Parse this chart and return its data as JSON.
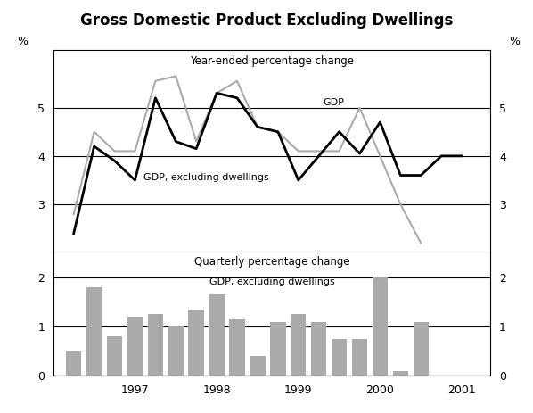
{
  "title": "Gross Domestic Product Excluding Dwellings",
  "upper_panel": {
    "label": "Year-ended percentage change",
    "ylim": [
      2.0,
      6.2
    ],
    "yticks": [
      3,
      4,
      5
    ],
    "gdp_excl_label": "GDP, excluding dwellings",
    "gdp_label": "GDP",
    "x_values": [
      1996.25,
      1996.5,
      1996.75,
      1997.0,
      1997.25,
      1997.5,
      1997.75,
      1998.0,
      1998.25,
      1998.5,
      1998.75,
      1999.0,
      1999.25,
      1999.5,
      1999.75,
      2000.0,
      2000.25,
      2000.5,
      2000.75,
      2001.0
    ],
    "gdp_excl_values": [
      2.4,
      4.2,
      3.9,
      3.5,
      5.2,
      4.3,
      4.15,
      5.3,
      5.2,
      4.6,
      4.5,
      3.5,
      4.0,
      4.5,
      4.05,
      4.7,
      3.6,
      3.6,
      4.0,
      4.0
    ],
    "gdp_values": [
      2.8,
      4.5,
      4.1,
      4.1,
      5.55,
      5.65,
      4.3,
      5.3,
      5.55,
      4.6,
      4.5,
      4.1,
      4.1,
      4.1,
      5.0,
      4.0,
      3.0,
      2.2,
      null,
      null
    ]
  },
  "lower_panel": {
    "label": "Quarterly percentage change",
    "bar_label": "GDP, excluding dwellings",
    "ylim": [
      0,
      2.5
    ],
    "yticks": [
      0,
      1,
      2
    ],
    "bar_color": "#aaaaaa",
    "x_values": [
      1996.25,
      1996.5,
      1996.75,
      1997.0,
      1997.25,
      1997.5,
      1997.75,
      1998.0,
      1998.25,
      1998.5,
      1998.75,
      1999.0,
      1999.25,
      1999.5,
      1999.75,
      2000.0,
      2000.25,
      2000.5
    ],
    "bar_values": [
      0.5,
      1.8,
      0.8,
      1.2,
      1.25,
      1.0,
      1.35,
      1.65,
      1.15,
      0.4,
      1.1,
      1.25,
      1.1,
      0.75,
      0.75,
      2.0,
      0.1,
      1.1
    ]
  },
  "x_tick_positions": [
    1997.0,
    1998.0,
    1999.0,
    2000.0,
    2001.0
  ],
  "x_tick_labels": [
    "1997",
    "1998",
    "1999",
    "2000",
    "2001"
  ],
  "x_min": 1996.0,
  "x_max": 2001.35,
  "background_color": "#ffffff",
  "line_color_gdp_excl": "#000000",
  "line_color_gdp": "#aaaaaa",
  "bar_width": 0.19
}
